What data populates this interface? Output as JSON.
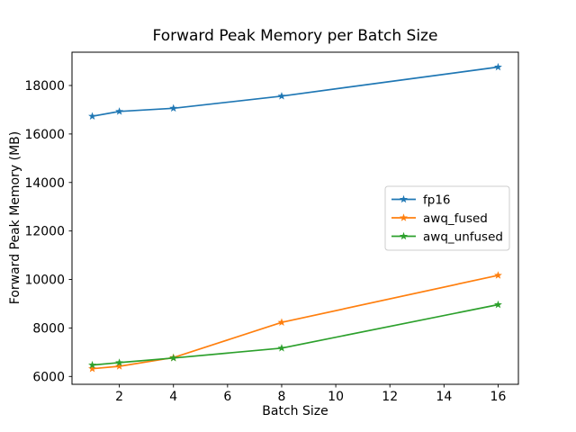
{
  "chart_data": {
    "type": "line",
    "title": "Forward Peak Memory per Batch Size",
    "xlabel": "Batch Size",
    "ylabel": "Forward Peak Memory (MB)",
    "x": [
      1,
      2,
      4,
      8,
      16
    ],
    "series": [
      {
        "name": "fp16",
        "color": "#1f77b4",
        "marker": "star",
        "values": [
          16730,
          16930,
          17060,
          17560,
          18760
        ]
      },
      {
        "name": "awq_fused",
        "color": "#ff7f0e",
        "marker": "star",
        "values": [
          6320,
          6420,
          6780,
          8230,
          10170
        ]
      },
      {
        "name": "awq_unfused",
        "color": "#2ca02c",
        "marker": "star",
        "values": [
          6470,
          6570,
          6760,
          7170,
          8960
        ]
      }
    ],
    "xlim": [
      0.25,
      16.75
    ],
    "ylim": [
      5677,
      19373
    ],
    "xticks": [
      2,
      4,
      6,
      8,
      10,
      12,
      14,
      16
    ],
    "yticks": [
      6000,
      8000,
      10000,
      12000,
      14000,
      16000,
      18000
    ],
    "grid": false,
    "legend": {
      "entries": [
        "fp16",
        "awq_fused",
        "awq_unfused"
      ],
      "position": "center right"
    },
    "background_color": "#ffffff",
    "axes_edge_color": "#000000",
    "tick_label_color": "#000000"
  }
}
